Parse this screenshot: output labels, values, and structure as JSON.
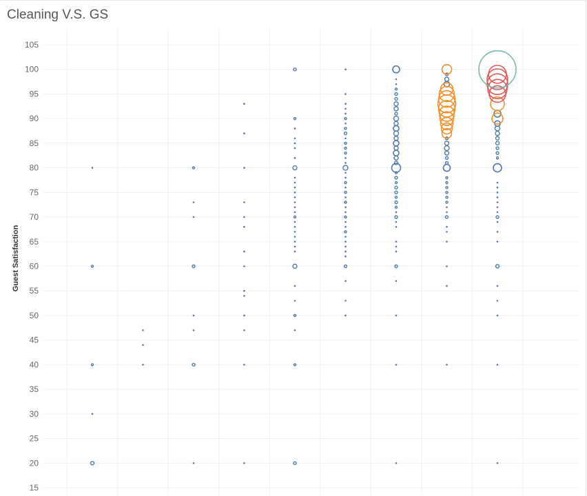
{
  "chart_data": {
    "type": "scatter",
    "title": "Cleaning V.S. GS",
    "xlabel": "",
    "ylabel": "Guest Satisfaction",
    "ylim": [
      15,
      105
    ],
    "yticks": [
      15,
      20,
      25,
      30,
      35,
      40,
      45,
      50,
      55,
      60,
      65,
      70,
      75,
      80,
      85,
      90,
      95,
      100,
      105
    ],
    "x_columns": [
      1,
      2,
      3,
      4,
      5,
      6,
      7,
      8,
      9
    ],
    "grid": true,
    "x_gridlines": [
      0.5,
      1.5,
      2.5,
      3.5,
      4.5,
      5.5,
      6.5,
      7.5,
      8.5,
      9.5
    ],
    "colors": {
      "blue": "#4e79a7",
      "orange": "#f28e2b",
      "red": "#e15759",
      "teal": "#76b7b2"
    },
    "series": [
      {
        "color": "blue",
        "points": [
          {
            "x": 1,
            "y": 80,
            "s": 1
          },
          {
            "x": 1,
            "y": 60,
            "s": 1.5
          },
          {
            "x": 1,
            "y": 40,
            "s": 1.5
          },
          {
            "x": 1,
            "y": 30,
            "s": 1
          },
          {
            "x": 1,
            "y": 20,
            "s": 2.5
          },
          {
            "x": 2,
            "y": 47,
            "s": 1
          },
          {
            "x": 2,
            "y": 44,
            "s": 1
          },
          {
            "x": 2,
            "y": 40,
            "s": 1
          },
          {
            "x": 3,
            "y": 80,
            "s": 1.5
          },
          {
            "x": 3,
            "y": 73,
            "s": 1
          },
          {
            "x": 3,
            "y": 70,
            "s": 1
          },
          {
            "x": 3,
            "y": 60,
            "s": 2
          },
          {
            "x": 3,
            "y": 50,
            "s": 1
          },
          {
            "x": 3,
            "y": 47,
            "s": 1
          },
          {
            "x": 3,
            "y": 40,
            "s": 2
          },
          {
            "x": 3,
            "y": 20,
            "s": 1
          },
          {
            "x": 4,
            "y": 93,
            "s": 1
          },
          {
            "x": 4,
            "y": 87,
            "s": 1
          },
          {
            "x": 4,
            "y": 80,
            "s": 1
          },
          {
            "x": 4,
            "y": 73,
            "s": 1
          },
          {
            "x": 4,
            "y": 70,
            "s": 1
          },
          {
            "x": 4,
            "y": 68,
            "s": 1
          },
          {
            "x": 4,
            "y": 63,
            "s": 1
          },
          {
            "x": 4,
            "y": 60,
            "s": 1
          },
          {
            "x": 4,
            "y": 55,
            "s": 1
          },
          {
            "x": 4,
            "y": 54,
            "s": 1
          },
          {
            "x": 4,
            "y": 50,
            "s": 1
          },
          {
            "x": 4,
            "y": 47,
            "s": 1
          },
          {
            "x": 4,
            "y": 40,
            "s": 1
          },
          {
            "x": 4,
            "y": 20,
            "s": 1
          },
          {
            "x": 5,
            "y": 100,
            "s": 2
          },
          {
            "x": 5,
            "y": 90,
            "s": 1.5
          },
          {
            "x": 5,
            "y": 88,
            "s": 1
          },
          {
            "x": 5,
            "y": 86,
            "s": 1
          },
          {
            "x": 5,
            "y": 85,
            "s": 1
          },
          {
            "x": 5,
            "y": 84,
            "s": 1
          },
          {
            "x": 5,
            "y": 82,
            "s": 1
          },
          {
            "x": 5,
            "y": 80,
            "s": 3
          },
          {
            "x": 5,
            "y": 78,
            "s": 1
          },
          {
            "x": 5,
            "y": 77,
            "s": 1
          },
          {
            "x": 5,
            "y": 76,
            "s": 1
          },
          {
            "x": 5,
            "y": 75,
            "s": 1
          },
          {
            "x": 5,
            "y": 74,
            "s": 1
          },
          {
            "x": 5,
            "y": 73,
            "s": 1
          },
          {
            "x": 5,
            "y": 72,
            "s": 1
          },
          {
            "x": 5,
            "y": 71,
            "s": 1
          },
          {
            "x": 5,
            "y": 70,
            "s": 1.5
          },
          {
            "x": 5,
            "y": 69,
            "s": 1
          },
          {
            "x": 5,
            "y": 68,
            "s": 1
          },
          {
            "x": 5,
            "y": 67,
            "s": 1
          },
          {
            "x": 5,
            "y": 66,
            "s": 1
          },
          {
            "x": 5,
            "y": 65,
            "s": 1
          },
          {
            "x": 5,
            "y": 64,
            "s": 1
          },
          {
            "x": 5,
            "y": 63,
            "s": 1
          },
          {
            "x": 5,
            "y": 60,
            "s": 3
          },
          {
            "x": 5,
            "y": 56,
            "s": 1
          },
          {
            "x": 5,
            "y": 53,
            "s": 1
          },
          {
            "x": 5,
            "y": 50,
            "s": 1.5
          },
          {
            "x": 5,
            "y": 47,
            "s": 1
          },
          {
            "x": 5,
            "y": 40,
            "s": 1.5
          },
          {
            "x": 5,
            "y": 20,
            "s": 2
          },
          {
            "x": 6,
            "y": 100,
            "s": 1
          },
          {
            "x": 6,
            "y": 95,
            "s": 1
          },
          {
            "x": 6,
            "y": 93,
            "s": 1
          },
          {
            "x": 6,
            "y": 92,
            "s": 1
          },
          {
            "x": 6,
            "y": 91,
            "s": 1
          },
          {
            "x": 6,
            "y": 90,
            "s": 1.5
          },
          {
            "x": 6,
            "y": 89,
            "s": 1
          },
          {
            "x": 6,
            "y": 88,
            "s": 1.5
          },
          {
            "x": 6,
            "y": 87,
            "s": 2
          },
          {
            "x": 6,
            "y": 86,
            "s": 1
          },
          {
            "x": 6,
            "y": 85,
            "s": 1.5
          },
          {
            "x": 6,
            "y": 84,
            "s": 1.5
          },
          {
            "x": 6,
            "y": 83,
            "s": 1.5
          },
          {
            "x": 6,
            "y": 82,
            "s": 1
          },
          {
            "x": 6,
            "y": 81,
            "s": 1
          },
          {
            "x": 6,
            "y": 80,
            "s": 3.5
          },
          {
            "x": 6,
            "y": 79,
            "s": 1
          },
          {
            "x": 6,
            "y": 78,
            "s": 1
          },
          {
            "x": 6,
            "y": 77,
            "s": 1.5
          },
          {
            "x": 6,
            "y": 76,
            "s": 1
          },
          {
            "x": 6,
            "y": 75,
            "s": 1.5
          },
          {
            "x": 6,
            "y": 74,
            "s": 1
          },
          {
            "x": 6,
            "y": 73,
            "s": 1.5
          },
          {
            "x": 6,
            "y": 72,
            "s": 1
          },
          {
            "x": 6,
            "y": 71,
            "s": 1
          },
          {
            "x": 6,
            "y": 70,
            "s": 1.5
          },
          {
            "x": 6,
            "y": 69,
            "s": 1
          },
          {
            "x": 6,
            "y": 68,
            "s": 1
          },
          {
            "x": 6,
            "y": 67,
            "s": 1.5
          },
          {
            "x": 6,
            "y": 66,
            "s": 1
          },
          {
            "x": 6,
            "y": 65,
            "s": 1
          },
          {
            "x": 6,
            "y": 64,
            "s": 1
          },
          {
            "x": 6,
            "y": 63,
            "s": 1
          },
          {
            "x": 6,
            "y": 62,
            "s": 1
          },
          {
            "x": 6,
            "y": 60,
            "s": 2
          },
          {
            "x": 6,
            "y": 57,
            "s": 1
          },
          {
            "x": 6,
            "y": 53,
            "s": 1
          },
          {
            "x": 6,
            "y": 50,
            "s": 1
          },
          {
            "x": 7,
            "y": 100,
            "s": 5
          },
          {
            "x": 7,
            "y": 98,
            "s": 1
          },
          {
            "x": 7,
            "y": 97,
            "s": 1
          },
          {
            "x": 7,
            "y": 96,
            "s": 1.5
          },
          {
            "x": 7,
            "y": 95,
            "s": 2
          },
          {
            "x": 7,
            "y": 94,
            "s": 2
          },
          {
            "x": 7,
            "y": 93,
            "s": 3
          },
          {
            "x": 7,
            "y": 92,
            "s": 3
          },
          {
            "x": 7,
            "y": 91,
            "s": 2
          },
          {
            "x": 7,
            "y": 90,
            "s": 3.5
          },
          {
            "x": 7,
            "y": 89,
            "s": 3
          },
          {
            "x": 7,
            "y": 88,
            "s": 4
          },
          {
            "x": 7,
            "y": 87,
            "s": 3.5
          },
          {
            "x": 7,
            "y": 86,
            "s": 3
          },
          {
            "x": 7,
            "y": 85,
            "s": 4
          },
          {
            "x": 7,
            "y": 84,
            "s": 3
          },
          {
            "x": 7,
            "y": 83,
            "s": 4
          },
          {
            "x": 7,
            "y": 82,
            "s": 3
          },
          {
            "x": 7,
            "y": 81,
            "s": 2.5
          },
          {
            "x": 7,
            "y": 80,
            "s": 6.5
          },
          {
            "x": 7,
            "y": 79,
            "s": 1.5
          },
          {
            "x": 7,
            "y": 78,
            "s": 2
          },
          {
            "x": 7,
            "y": 77,
            "s": 1.5
          },
          {
            "x": 7,
            "y": 76,
            "s": 2
          },
          {
            "x": 7,
            "y": 75,
            "s": 2
          },
          {
            "x": 7,
            "y": 74,
            "s": 1.5
          },
          {
            "x": 7,
            "y": 73,
            "s": 2
          },
          {
            "x": 7,
            "y": 72,
            "s": 1.5
          },
          {
            "x": 7,
            "y": 71,
            "s": 1
          },
          {
            "x": 7,
            "y": 70,
            "s": 2
          },
          {
            "x": 7,
            "y": 69,
            "s": 1
          },
          {
            "x": 7,
            "y": 68,
            "s": 1
          },
          {
            "x": 7,
            "y": 65,
            "s": 1
          },
          {
            "x": 7,
            "y": 64,
            "s": 1
          },
          {
            "x": 7,
            "y": 63,
            "s": 1
          },
          {
            "x": 7,
            "y": 60,
            "s": 2
          },
          {
            "x": 7,
            "y": 57,
            "s": 1
          },
          {
            "x": 7,
            "y": 50,
            "s": 1
          },
          {
            "x": 7,
            "y": 40,
            "s": 1
          },
          {
            "x": 7,
            "y": 20,
            "s": 1
          },
          {
            "x": 8,
            "y": 99,
            "s": 2
          },
          {
            "x": 8,
            "y": 98,
            "s": 3
          },
          {
            "x": 8,
            "y": 97,
            "s": 4
          },
          {
            "x": 8,
            "y": 86,
            "s": 2
          },
          {
            "x": 8,
            "y": 85,
            "s": 3
          },
          {
            "x": 8,
            "y": 84,
            "s": 3.5
          },
          {
            "x": 8,
            "y": 83,
            "s": 3
          },
          {
            "x": 8,
            "y": 82,
            "s": 2
          },
          {
            "x": 8,
            "y": 81,
            "s": 2
          },
          {
            "x": 8,
            "y": 80,
            "s": 5
          },
          {
            "x": 8,
            "y": 78,
            "s": 1.5
          },
          {
            "x": 8,
            "y": 77,
            "s": 1.5
          },
          {
            "x": 8,
            "y": 76,
            "s": 1.5
          },
          {
            "x": 8,
            "y": 75,
            "s": 1.5
          },
          {
            "x": 8,
            "y": 74,
            "s": 1.5
          },
          {
            "x": 8,
            "y": 73,
            "s": 1.5
          },
          {
            "x": 8,
            "y": 72,
            "s": 1
          },
          {
            "x": 8,
            "y": 71,
            "s": 1
          },
          {
            "x": 8,
            "y": 70,
            "s": 2
          },
          {
            "x": 8,
            "y": 68,
            "s": 1
          },
          {
            "x": 8,
            "y": 67,
            "s": 1
          },
          {
            "x": 8,
            "y": 65,
            "s": 1
          },
          {
            "x": 8,
            "y": 60,
            "s": 1
          },
          {
            "x": 8,
            "y": 56,
            "s": 1
          },
          {
            "x": 8,
            "y": 40,
            "s": 1
          },
          {
            "x": 9,
            "y": 91,
            "s": 5
          },
          {
            "x": 9,
            "y": 89,
            "s": 4
          },
          {
            "x": 9,
            "y": 88,
            "s": 3.5
          },
          {
            "x": 9,
            "y": 87,
            "s": 3
          },
          {
            "x": 9,
            "y": 86,
            "s": 2.5
          },
          {
            "x": 9,
            "y": 85,
            "s": 2.5
          },
          {
            "x": 9,
            "y": 84,
            "s": 2
          },
          {
            "x": 9,
            "y": 83,
            "s": 2
          },
          {
            "x": 9,
            "y": 82,
            "s": 1.5
          },
          {
            "x": 9,
            "y": 80,
            "s": 6
          },
          {
            "x": 9,
            "y": 77,
            "s": 1
          },
          {
            "x": 9,
            "y": 76,
            "s": 1
          },
          {
            "x": 9,
            "y": 75,
            "s": 1
          },
          {
            "x": 9,
            "y": 74,
            "s": 1
          },
          {
            "x": 9,
            "y": 73,
            "s": 1
          },
          {
            "x": 9,
            "y": 72,
            "s": 1
          },
          {
            "x": 9,
            "y": 71,
            "s": 1
          },
          {
            "x": 9,
            "y": 70,
            "s": 2
          },
          {
            "x": 9,
            "y": 69,
            "s": 1
          },
          {
            "x": 9,
            "y": 67,
            "s": 1
          },
          {
            "x": 9,
            "y": 65,
            "s": 1
          },
          {
            "x": 9,
            "y": 60,
            "s": 2.5
          },
          {
            "x": 9,
            "y": 56,
            "s": 1
          },
          {
            "x": 9,
            "y": 53,
            "s": 1
          },
          {
            "x": 9,
            "y": 50,
            "s": 1
          },
          {
            "x": 9,
            "y": 40,
            "s": 1
          },
          {
            "x": 9,
            "y": 20,
            "s": 1
          }
        ]
      },
      {
        "color": "orange",
        "points": [
          {
            "x": 8,
            "y": 100,
            "s": 7
          },
          {
            "x": 8,
            "y": 96,
            "s": 9
          },
          {
            "x": 8,
            "y": 95,
            "s": 11
          },
          {
            "x": 8,
            "y": 94,
            "s": 12
          },
          {
            "x": 8,
            "y": 93,
            "s": 13
          },
          {
            "x": 8,
            "y": 92,
            "s": 12
          },
          {
            "x": 8,
            "y": 91,
            "s": 11
          },
          {
            "x": 8,
            "y": 90,
            "s": 10
          },
          {
            "x": 8,
            "y": 89,
            "s": 9
          },
          {
            "x": 8,
            "y": 88,
            "s": 8
          },
          {
            "x": 8,
            "y": 87,
            "s": 7
          },
          {
            "x": 9,
            "y": 93,
            "s": 10
          },
          {
            "x": 9,
            "y": 90,
            "s": 8
          }
        ]
      },
      {
        "color": "red",
        "points": [
          {
            "x": 9,
            "y": 99,
            "s": 13
          },
          {
            "x": 9,
            "y": 98,
            "s": 15
          },
          {
            "x": 9,
            "y": 97,
            "s": 15
          },
          {
            "x": 9,
            "y": 96,
            "s": 14
          },
          {
            "x": 9,
            "y": 95,
            "s": 12
          }
        ]
      },
      {
        "color": "teal",
        "points": [
          {
            "x": 9,
            "y": 100,
            "s": 27
          }
        ]
      }
    ]
  }
}
